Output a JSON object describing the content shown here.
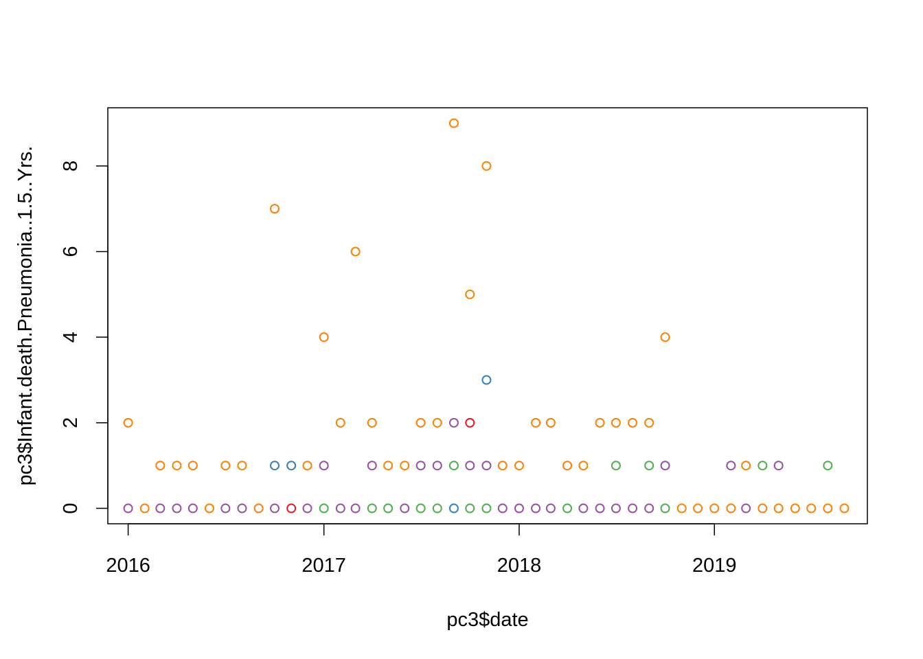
{
  "chart_data": {
    "type": "scatter",
    "title": "",
    "xlabel": "pc3$date",
    "ylabel": "pc3$Infant.death.Pneumonia..1.5..Yrs.",
    "x_ticks": [
      "2016",
      "2017",
      "2018",
      "2019"
    ],
    "y_ticks": [
      "0",
      "2",
      "4",
      "6",
      "8"
    ],
    "xlim": [
      "2015-11-24",
      "2019-10-14"
    ],
    "ylim": [
      -0.36,
      9.36
    ],
    "grid": false,
    "legend": "none",
    "colors": {
      "orange": "#FF7F00",
      "purple": "#984EA3",
      "blue": "#377EB8",
      "green": "#4DAF4A",
      "red": "#E41A1C"
    },
    "series": [
      {
        "color": "orange",
        "points": [
          [
            "2016-01-01",
            2
          ],
          [
            "2016-02-01",
            0
          ],
          [
            "2016-03-01",
            1
          ],
          [
            "2016-04-01",
            1
          ],
          [
            "2016-05-01",
            1
          ],
          [
            "2016-06-01",
            0
          ],
          [
            "2016-07-01",
            1
          ],
          [
            "2016-08-01",
            1
          ],
          [
            "2016-09-01",
            0
          ],
          [
            "2016-10-01",
            7
          ],
          [
            "2016-12-01",
            1
          ],
          [
            "2017-01-01",
            4
          ],
          [
            "2017-02-01",
            2
          ],
          [
            "2017-03-01",
            6
          ],
          [
            "2017-04-01",
            2
          ],
          [
            "2017-05-01",
            1
          ],
          [
            "2017-06-01",
            1
          ],
          [
            "2017-07-01",
            2
          ],
          [
            "2017-08-01",
            2
          ],
          [
            "2017-09-01",
            9
          ],
          [
            "2017-10-01",
            5
          ],
          [
            "2017-11-01",
            8
          ],
          [
            "2017-12-01",
            1
          ],
          [
            "2018-01-01",
            1
          ],
          [
            "2018-02-01",
            2
          ],
          [
            "2018-03-01",
            2
          ],
          [
            "2018-04-01",
            1
          ],
          [
            "2018-05-01",
            1
          ],
          [
            "2018-06-01",
            2
          ],
          [
            "2018-07-01",
            2
          ],
          [
            "2018-08-01",
            2
          ],
          [
            "2018-09-01",
            2
          ],
          [
            "2018-10-01",
            4
          ],
          [
            "2018-11-01",
            0
          ],
          [
            "2018-12-01",
            0
          ],
          [
            "2019-01-01",
            0
          ],
          [
            "2019-02-01",
            0
          ],
          [
            "2019-03-01",
            1
          ],
          [
            "2019-04-01",
            0
          ],
          [
            "2019-05-01",
            0
          ],
          [
            "2019-06-01",
            0
          ],
          [
            "2019-07-01",
            0
          ],
          [
            "2019-08-01",
            0
          ],
          [
            "2019-09-01",
            0
          ]
        ]
      },
      {
        "color": "purple",
        "points": [
          [
            "2016-01-01",
            0
          ],
          [
            "2016-03-01",
            0
          ],
          [
            "2016-04-01",
            0
          ],
          [
            "2016-05-01",
            0
          ],
          [
            "2016-07-01",
            0
          ],
          [
            "2016-08-01",
            0
          ],
          [
            "2016-10-01",
            0
          ],
          [
            "2016-12-01",
            0
          ],
          [
            "2017-01-01",
            1
          ],
          [
            "2017-02-01",
            0
          ],
          [
            "2017-03-01",
            0
          ],
          [
            "2017-04-01",
            1
          ],
          [
            "2017-06-01",
            0
          ],
          [
            "2017-07-01",
            1
          ],
          [
            "2017-08-01",
            1
          ],
          [
            "2017-09-01",
            2
          ],
          [
            "2017-10-01",
            1
          ],
          [
            "2017-11-01",
            1
          ],
          [
            "2017-12-01",
            0
          ],
          [
            "2018-01-01",
            0
          ],
          [
            "2018-02-01",
            0
          ],
          [
            "2018-03-01",
            0
          ],
          [
            "2018-05-01",
            0
          ],
          [
            "2018-06-01",
            0
          ],
          [
            "2018-07-01",
            0
          ],
          [
            "2018-08-01",
            0
          ],
          [
            "2018-09-01",
            0
          ],
          [
            "2018-10-01",
            1
          ],
          [
            "2019-02-01",
            1
          ],
          [
            "2019-03-01",
            0
          ],
          [
            "2019-05-01",
            1
          ]
        ]
      },
      {
        "color": "blue",
        "points": [
          [
            "2016-10-01",
            1
          ],
          [
            "2016-11-01",
            1
          ],
          [
            "2017-09-01",
            0
          ],
          [
            "2017-11-01",
            3
          ]
        ]
      },
      {
        "color": "green",
        "points": [
          [
            "2017-01-01",
            0
          ],
          [
            "2017-04-01",
            0
          ],
          [
            "2017-05-01",
            0
          ],
          [
            "2017-07-01",
            0
          ],
          [
            "2017-08-01",
            0
          ],
          [
            "2017-09-01",
            1
          ],
          [
            "2017-10-01",
            0
          ],
          [
            "2017-11-01",
            0
          ],
          [
            "2018-04-01",
            0
          ],
          [
            "2018-07-01",
            1
          ],
          [
            "2018-09-01",
            1
          ],
          [
            "2018-10-01",
            0
          ],
          [
            "2019-04-01",
            1
          ],
          [
            "2019-08-01",
            1
          ]
        ]
      },
      {
        "color": "red",
        "points": [
          [
            "2016-11-01",
            0
          ],
          [
            "2017-10-01",
            2
          ]
        ]
      }
    ]
  }
}
